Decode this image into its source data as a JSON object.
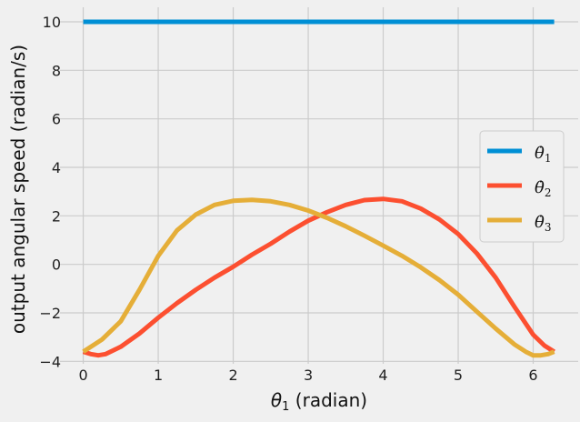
{
  "chart_data": {
    "type": "line",
    "style": "fivethirtyeight",
    "xlabel": "θ1 (radian)",
    "xlabel_parts": {
      "symbol": "θ",
      "sub": "1",
      "rest": " (radian)"
    },
    "ylabel": "output angular speed (radian/s)",
    "xlim": [
      -0.31,
      6.6
    ],
    "ylim": [
      -4.1,
      10.6
    ],
    "xticks": [
      0,
      1,
      2,
      3,
      4,
      5,
      6
    ],
    "yticks": [
      -4,
      -2,
      0,
      2,
      4,
      6,
      8,
      10
    ],
    "grid": true,
    "legend_position": "right",
    "series": [
      {
        "name": "θ̇1",
        "label_sub": "1",
        "color": "#008fd5",
        "x": [
          0,
          0.5,
          1,
          1.5,
          2,
          2.5,
          3,
          3.5,
          4,
          4.5,
          5,
          5.5,
          6,
          6.28
        ],
        "y": [
          10,
          10,
          10,
          10,
          10,
          10,
          10,
          10,
          10,
          10,
          10,
          10,
          10,
          10
        ]
      },
      {
        "name": "θ̇2",
        "label_sub": "2",
        "color": "#fc4f30",
        "x": [
          0,
          0.1,
          0.2,
          0.3,
          0.5,
          0.75,
          1,
          1.25,
          1.5,
          1.75,
          2,
          2.25,
          2.5,
          2.75,
          3,
          3.25,
          3.5,
          3.75,
          4,
          4.25,
          4.5,
          4.75,
          5,
          5.25,
          5.5,
          5.75,
          6,
          6.15,
          6.28
        ],
        "y": [
          -3.6,
          -3.7,
          -3.75,
          -3.7,
          -3.4,
          -2.85,
          -2.2,
          -1.6,
          -1.05,
          -0.55,
          -0.1,
          0.4,
          0.85,
          1.35,
          1.8,
          2.15,
          2.45,
          2.65,
          2.7,
          2.6,
          2.3,
          1.85,
          1.25,
          0.45,
          -0.55,
          -1.75,
          -2.9,
          -3.35,
          -3.6
        ]
      },
      {
        "name": "θ̇3",
        "label_sub": "3",
        "color": "#e5ae38",
        "x": [
          0,
          0.25,
          0.5,
          0.75,
          1,
          1.25,
          1.5,
          1.75,
          2,
          2.25,
          2.5,
          2.75,
          3,
          3.25,
          3.5,
          3.75,
          4,
          4.25,
          4.5,
          4.75,
          5,
          5.25,
          5.5,
          5.75,
          5.9,
          6.0,
          6.1,
          6.2,
          6.28
        ],
        "y": [
          -3.6,
          -3.1,
          -2.35,
          -1.05,
          0.35,
          1.4,
          2.05,
          2.45,
          2.62,
          2.66,
          2.6,
          2.45,
          2.22,
          1.92,
          1.57,
          1.18,
          0.77,
          0.35,
          -0.12,
          -0.65,
          -1.25,
          -1.95,
          -2.65,
          -3.3,
          -3.6,
          -3.75,
          -3.75,
          -3.7,
          -3.6
        ]
      }
    ]
  }
}
